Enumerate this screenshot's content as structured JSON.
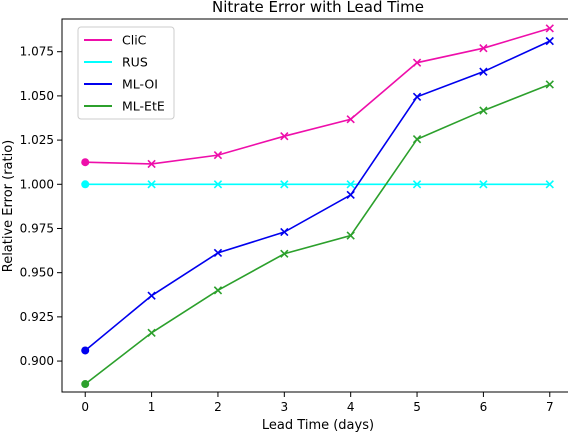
{
  "chart_data": {
    "type": "line",
    "title": "Nitrate Error with Lead Time",
    "xlabel": "Lead Time (days)",
    "ylabel": "Relative Error (ratio)",
    "x": [
      0,
      1,
      2,
      3,
      4,
      5,
      6,
      7
    ],
    "xlim": [
      -0.35,
      7.35
    ],
    "ylim": [
      0.8825,
      1.0935
    ],
    "xticks": [
      0,
      1,
      2,
      3,
      4,
      5,
      6,
      7
    ],
    "yticks": [
      0.9,
      0.925,
      0.95,
      0.975,
      1.0,
      1.025,
      1.05,
      1.075
    ],
    "ytick_labels": [
      "0.900",
      "0.925",
      "0.950",
      "0.975",
      "1.000",
      "1.025",
      "1.050",
      "1.075"
    ],
    "grid": false,
    "legend_position": "top-left",
    "series": [
      {
        "name": "CliC",
        "color": "#ee0eaa",
        "values": [
          1.0125,
          1.0115,
          1.0165,
          1.0272,
          1.0368,
          1.0688,
          1.077,
          1.0882
        ]
      },
      {
        "name": "RUS",
        "color": "#00ffff",
        "values": [
          1.0,
          1.0,
          1.0,
          1.0,
          1.0,
          1.0,
          1.0,
          1.0
        ]
      },
      {
        "name": "ML-OI",
        "color": "#0000ee",
        "values": [
          0.906,
          0.937,
          0.9612,
          0.973,
          0.994,
          1.0495,
          1.0637,
          1.081
        ]
      },
      {
        "name": "ML-EtE",
        "color": "#2ca02c",
        "values": [
          0.887,
          0.916,
          0.94,
          0.9607,
          0.971,
          1.0255,
          1.0417,
          1.0565
        ]
      }
    ]
  }
}
